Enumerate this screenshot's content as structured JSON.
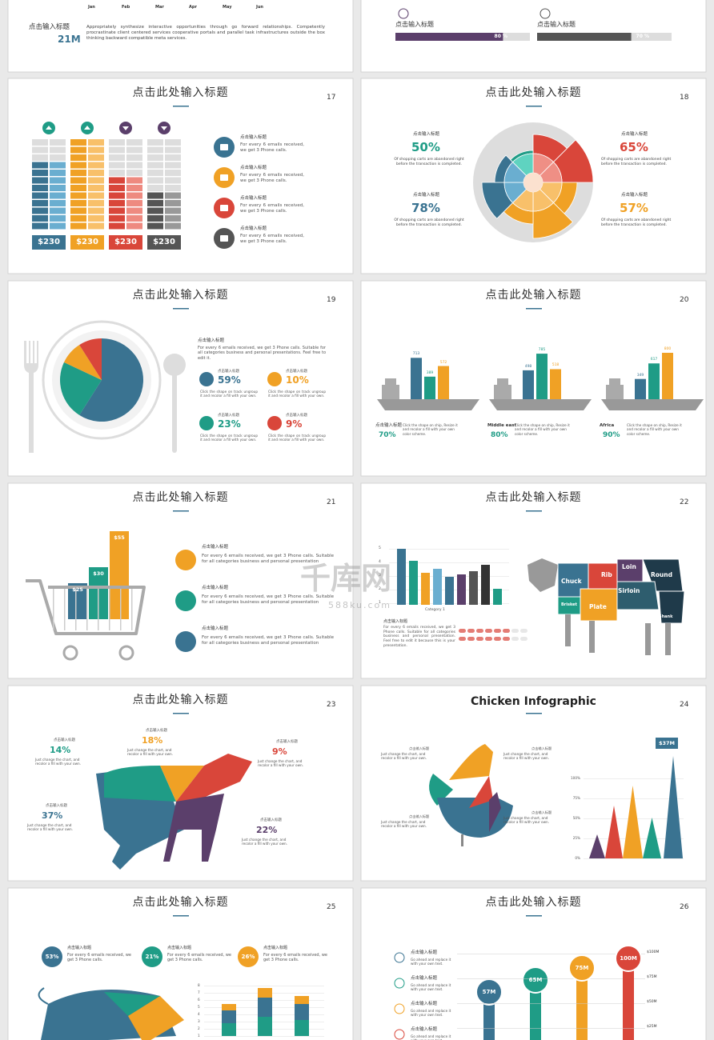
{
  "top_left": {
    "months": [
      "Jan",
      "Feb",
      "Mar",
      "Apr",
      "May",
      "Jun"
    ],
    "label": "点击输入标题",
    "value": "21M",
    "text": "Appropriately synthesize interactive opportunities through go forward relationships. Competently procrastinate client centered services cooperative portals and parallel task infrastructures outside the box thinking backward compatible meta services."
  },
  "top_right": {
    "items": [
      {
        "label": "点击输入标题",
        "value": "80 %"
      },
      {
        "label": "点击输入标题",
        "value": "70 %"
      }
    ]
  },
  "watermark": {
    "brand": "千库网",
    "url": "588ku.com"
  },
  "slides": [
    {
      "number": "17",
      "title": "点击此处输入标题",
      "prices": [
        "$230",
        "$230",
        "$230",
        "$230"
      ],
      "items": [
        {
          "heading": "点击输入标题",
          "text": "For every 6 emails received, we get 3 Phone calls."
        },
        {
          "heading": "点击输入标题",
          "text": "For every 6 emails received, we get 3 Phone calls."
        },
        {
          "heading": "点击输入标题",
          "text": "For every 6 emails received, we get 3 Phone calls."
        },
        {
          "heading": "点击输入标题",
          "text": "For every 6 emails received, we get 3 Phone calls."
        }
      ]
    },
    {
      "number": "18",
      "title": "点击此处输入标题",
      "stats": [
        {
          "heading": "点击输入标题",
          "value": "50%",
          "text": "Of shopping carts are abandoned right before the transaction is completed."
        },
        {
          "heading": "点击输入标题",
          "value": "78%",
          "text": "Of shopping carts are abandoned right before the transaction is completed."
        },
        {
          "heading": "点击输入标题",
          "value": "65%",
          "text": "Of shopping carts are abandoned right before the transaction is completed."
        },
        {
          "heading": "点击输入标题",
          "value": "57%",
          "text": "Of shopping carts are abandoned right before the transaction is completed."
        }
      ]
    },
    {
      "number": "19",
      "title": "点击此处输入标题",
      "heading": "点击输入标题",
      "text": "For every 6 emails received, we get 3 Phone calls. Suitable for all categories business and personal presentations. Feel free to edit it.",
      "stats": [
        {
          "heading": "点击输入标题",
          "value": "59%",
          "text": "Click the shape on track ungroup it and recolor a fill with your own."
        },
        {
          "heading": "点击输入标题",
          "value": "10%",
          "text": "Click the shape on track ungroup it and recolor a fill with your own."
        },
        {
          "heading": "点击输入标题",
          "value": "23%",
          "text": "Click the shape on track ungroup it and recolor a fill with your own."
        },
        {
          "heading": "点击输入标题",
          "value": "9%",
          "text": "Click the shape on track ungroup it and recolor a fill with your own."
        }
      ]
    },
    {
      "number": "20",
      "title": "点击此处输入标题",
      "ships": [
        {
          "values": [
            "713",
            "389",
            "572"
          ],
          "label": "点击输入标题",
          "pct": "70%",
          "text": "Click the shape on ship, Resize it and recolor a fill with your own color scheme."
        },
        {
          "values": [
            "498",
            "785",
            "518"
          ],
          "label": "Middle east",
          "pct": "80%",
          "text": "Click the shape on ship, Resize it and recolor a fill with your own color scheme."
        },
        {
          "values": [
            "349",
            "617",
            "800"
          ],
          "label": "Africa",
          "pct": "90%",
          "text": "Click the shape on ship, Resize it and recolor a fill with your own color scheme."
        }
      ]
    },
    {
      "number": "21",
      "title": "点击此处输入标题",
      "bars": [
        "$25",
        "$30",
        "$55"
      ],
      "items": [
        {
          "heading": "点击输入标题",
          "text": "For every 6 emails received, we get 3 Phone calls. Suitable for all categories business and personal presentation"
        },
        {
          "heading": "点击输入标题",
          "text": "For every 6 emails received, we get 3 Phone calls. Suitable for all categories business and personal presentation"
        },
        {
          "heading": "点击输入标题",
          "text": "For every 6 emails received, we get 3 Phone calls. Suitable for all categories business and personal presentation"
        }
      ]
    },
    {
      "number": "22",
      "title": "点击此处输入标题",
      "yticks": [
        "1",
        "2",
        "3",
        "4",
        "5"
      ],
      "category": "Category 1",
      "heading": "点击输入标题",
      "text": "For every 6 emails received, we get 3 Phone calls. Suitable for all categories business and personal presentation. Feel free to edit it because this is your presentation.",
      "cuts": [
        "Chuck",
        "Rib",
        "Loin",
        "Round",
        "Sirloin",
        "Brisket",
        "Plate",
        "Shank"
      ]
    },
    {
      "number": "23",
      "title": "点击此处输入标题",
      "labels": [
        {
          "heading": "点击输入标题",
          "value": "14%",
          "text": "Just change the chart, and recolor a fill with your own."
        },
        {
          "heading": "点击输入标题",
          "value": "18%",
          "text": "Just change the chart, and recolor a fill with your own."
        },
        {
          "heading": "点击输入标题",
          "value": "9%",
          "text": "Just change the chart, and recolor a fill with your own."
        },
        {
          "heading": "点击输入标题",
          "value": "37%",
          "text": "Just change the chart, and recolor a fill with your own."
        },
        {
          "heading": "点击输入标题",
          "value": "22%",
          "text": "Just change the chart, and recolor a fill with your own."
        }
      ]
    },
    {
      "number": "24",
      "title": "Chicken Infographic",
      "callout": "$37M",
      "yticks": [
        "100%",
        "75%",
        "50%",
        "25%",
        "0%"
      ],
      "labels": [
        {
          "heading": "点击输入标题",
          "text": "Just change the chart, and recolor a fill with your own."
        },
        {
          "heading": "点击输入标题",
          "text": "Just change the chart, and recolor a fill with your own."
        },
        {
          "heading": "点击输入标题",
          "text": "Just change the chart, and recolor a fill with your own."
        },
        {
          "heading": "点击输入标题",
          "text": "Just change the chart, and recolor a fill with your own."
        }
      ]
    },
    {
      "number": "25",
      "title": "点击此处输入标题",
      "yticks": [
        "1",
        "2",
        "3",
        "4",
        "5",
        "6",
        "7",
        "8"
      ],
      "stats": [
        {
          "value": "53%",
          "heading": "点击输入标题",
          "text": "For every 6 emails received, we get 3 Phone calls."
        },
        {
          "value": "21%",
          "heading": "点击输入标题",
          "text": "For every 6 emails received, we get 3 Phone calls."
        },
        {
          "value": "26%",
          "heading": "点击输入标题",
          "text": "For every 6 emails received, we get 3 Phone calls."
        }
      ]
    },
    {
      "number": "26",
      "title": "点击此处输入标题",
      "values": [
        "57M",
        "65M",
        "75M",
        "100M"
      ],
      "axis": [
        "$100M",
        "$75M",
        "$50M",
        "$25M"
      ],
      "items": [
        {
          "heading": "点击输入标题",
          "text": "Go ahead and replace it with your own text."
        },
        {
          "heading": "点击输入标题",
          "text": "Go ahead and replace it with your own text."
        },
        {
          "heading": "点击输入标题",
          "text": "Go ahead and replace it with your own text."
        },
        {
          "heading": "点击输入标题",
          "text": "Go ahead and replace it with your own text."
        }
      ]
    }
  ]
}
